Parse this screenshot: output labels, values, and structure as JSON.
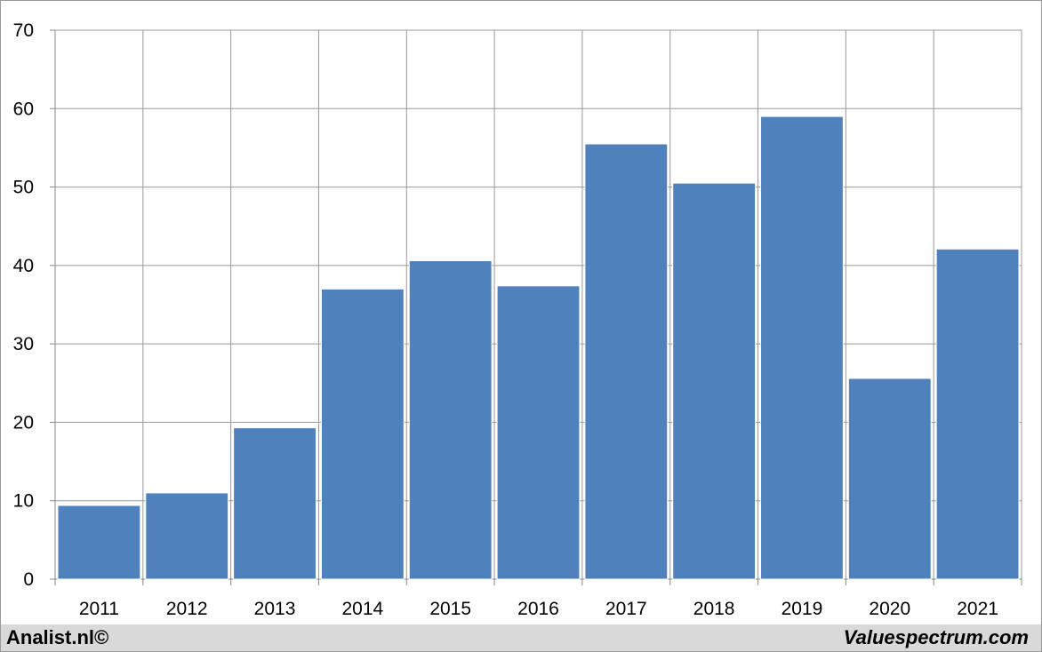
{
  "chart_data": {
    "type": "bar",
    "categories": [
      "2011",
      "2012",
      "2013",
      "2014",
      "2015",
      "2016",
      "2017",
      "2018",
      "2019",
      "2020",
      "2021"
    ],
    "values": [
      9.4,
      11.0,
      19.3,
      37.0,
      40.6,
      37.4,
      55.5,
      50.5,
      59.0,
      25.6,
      42.1
    ],
    "ylim": [
      0,
      70
    ],
    "yticks": [
      "0",
      "10",
      "20",
      "30",
      "40",
      "50",
      "60",
      "70"
    ],
    "grid": true,
    "legend": "none",
    "bar_color": "#4f81bd",
    "grid_color": "#999999"
  },
  "footer": {
    "left_text": "Analist.nl©",
    "right_text": "Valuespectrum.com",
    "background": "#d9d9d9"
  }
}
